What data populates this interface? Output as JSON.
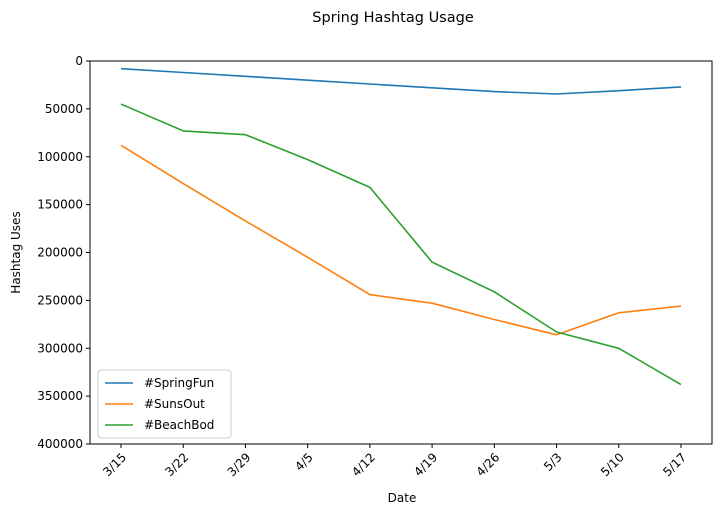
{
  "chart_data": {
    "type": "line",
    "title": "Spring Hashtag Usage",
    "xlabel": "Date",
    "ylabel": "Hashtag Uses",
    "categories": [
      "3/15",
      "3/22",
      "3/29",
      "4/5",
      "4/12",
      "4/19",
      "4/26",
      "5/3",
      "5/10",
      "5/17"
    ],
    "ylim": [
      0,
      400000
    ],
    "y_inverted": true,
    "yticks": [
      0,
      50000,
      100000,
      150000,
      200000,
      250000,
      300000,
      350000,
      400000
    ],
    "grid": false,
    "legend_position": "lower-left",
    "series": [
      {
        "name": "#SpringFun",
        "color": "#1f77b4",
        "values": [
          8000,
          12000,
          16000,
          20000,
          24000,
          28000,
          32000,
          34500,
          31000,
          27000
        ]
      },
      {
        "name": "#SunsOut",
        "color": "#ff7f0e",
        "values": [
          88000,
          128000,
          167000,
          205000,
          244000,
          253000,
          270000,
          286000,
          263000,
          256000
        ]
      },
      {
        "name": "#BeachBod",
        "color": "#2ca02c",
        "values": [
          45000,
          73000,
          77000,
          103000,
          132000,
          210000,
          241000,
          283000,
          300000,
          338000
        ]
      }
    ]
  }
}
